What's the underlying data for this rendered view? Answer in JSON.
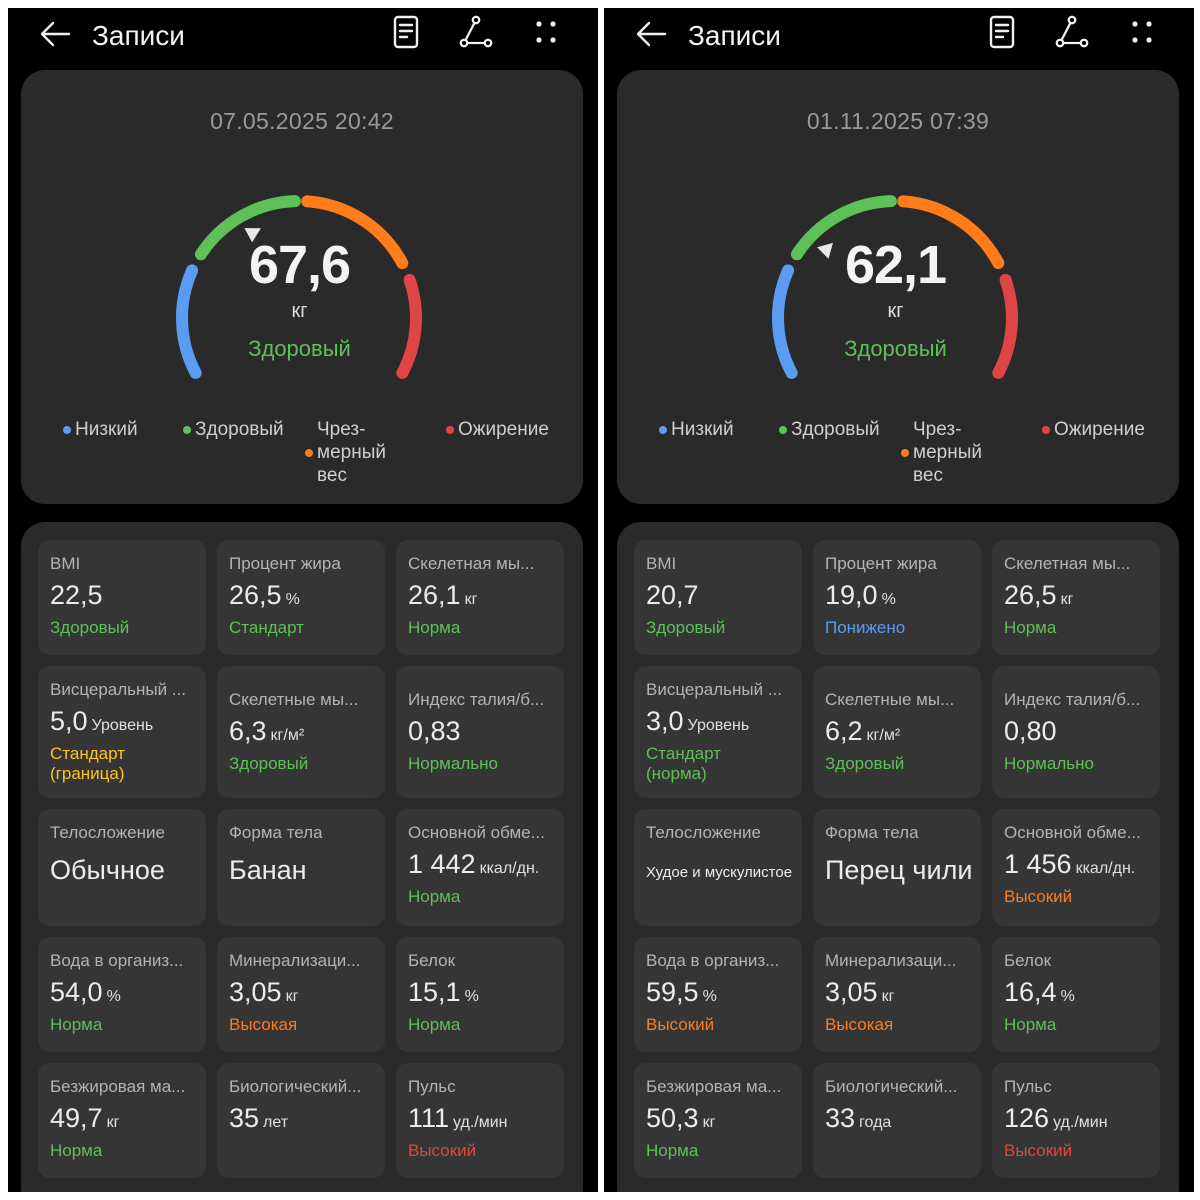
{
  "colors": {
    "low": "#5b9cf3",
    "healthy": "#5dc158",
    "excess": "#ff7c1a",
    "obese": "#e04545",
    "standard_border": "#ffc31f"
  },
  "icons": [
    "arrow-left-icon",
    "document-icon",
    "share-icon",
    "more-dots-icon",
    "pointer-triangle-icon"
  ],
  "screens": [
    {
      "title": "Записи",
      "date": "07.05.2025 20:42",
      "weight": {
        "value": "67,6",
        "unit": "кг",
        "status": "Здоровый",
        "pointer_fraction": 0.38
      },
      "legend": [
        "Низкий",
        "Здоровый",
        "Чрез-\nмерный\nвес",
        "Ожирение"
      ],
      "metrics": [
        {
          "label": "BMI",
          "value": "22,5",
          "unit": "",
          "status": "Здоровый",
          "status_color": "#5dc158"
        },
        {
          "label": "Процент жира",
          "value": "26,5",
          "unit": "%",
          "status": "Стандарт",
          "status_color": "#5dc158"
        },
        {
          "label": "Скелетная мы...",
          "value": "26,1",
          "unit": "кг",
          "status": "Норма",
          "status_color": "#5dc158"
        },
        {
          "label": "Висцеральный ...",
          "value": "5,0",
          "unit": "Уровень",
          "status": "Стандарт\n(граница)",
          "status_color": "#ffc31f"
        },
        {
          "label": "Скелетные мы...",
          "value": "6,3",
          "unit": "кг/м²",
          "status": "Здоровый",
          "status_color": "#5dc158"
        },
        {
          "label": "Индекс талия/б...",
          "value": "0,83",
          "unit": "",
          "status": "Нормально",
          "status_color": "#5dc158"
        },
        {
          "label": "Телосложение",
          "value": "Обычное",
          "unit": "",
          "status": "",
          "status_color": "#5dc158"
        },
        {
          "label": "Форма тела",
          "value": "Банан",
          "unit": "",
          "status": "",
          "status_color": "#5dc158"
        },
        {
          "label": "Основной обме...",
          "value": "1 442",
          "unit": "ккал/дн.",
          "status": "Норма",
          "status_color": "#5dc158"
        },
        {
          "label": "Вода в организ...",
          "value": "54,0",
          "unit": "%",
          "status": "Норма",
          "status_color": "#5dc158"
        },
        {
          "label": "Минерализаци...",
          "value": "3,05",
          "unit": "кг",
          "status": "Высокая",
          "status_color": "#ff7c1a"
        },
        {
          "label": "Белок",
          "value": "15,1",
          "unit": "%",
          "status": "Норма",
          "status_color": "#5dc158"
        },
        {
          "label": "Безжировая ма...",
          "value": "49,7",
          "unit": "кг",
          "status": "Норма",
          "status_color": "#5dc158"
        },
        {
          "label": "Биологический...",
          "value": "35",
          "unit": "лет",
          "status": "",
          "status_color": "#5dc158"
        },
        {
          "label": "Пульс",
          "value": "111",
          "unit": "уд./мин",
          "status": "Высокий",
          "status_color": "#e04545"
        }
      ]
    },
    {
      "title": "Записи",
      "date": "01.11.2025 07:39",
      "weight": {
        "value": "62,1",
        "unit": "кг",
        "status": "Здоровый",
        "pointer_fraction": 0.31
      },
      "legend": [
        "Низкий",
        "Здоровый",
        "Чрез-\nмерный\nвес",
        "Ожирение"
      ],
      "metrics": [
        {
          "label": "BMI",
          "value": "20,7",
          "unit": "",
          "status": "Здоровый",
          "status_color": "#5dc158"
        },
        {
          "label": "Процент жира",
          "value": "19,0",
          "unit": "%",
          "status": "Понижено",
          "status_color": "#5b9cf3"
        },
        {
          "label": "Скелетная мы...",
          "value": "26,5",
          "unit": "кг",
          "status": "Норма",
          "status_color": "#5dc158"
        },
        {
          "label": "Висцеральный ...",
          "value": "3,0",
          "unit": "Уровень",
          "status": "Стандарт\n(норма)",
          "status_color": "#5dc158"
        },
        {
          "label": "Скелетные мы...",
          "value": "6,2",
          "unit": "кг/м²",
          "status": "Здоровый",
          "status_color": "#5dc158"
        },
        {
          "label": "Индекс талия/б...",
          "value": "0,80",
          "unit": "",
          "status": "Нормально",
          "status_color": "#5dc158"
        },
        {
          "label": "Телосложение",
          "value": "Худое и мускулистое",
          "unit": "",
          "status": "",
          "status_color": "#5dc158",
          "small": true
        },
        {
          "label": "Форма тела",
          "value": "Перец чили",
          "unit": "",
          "status": "",
          "status_color": "#5dc158"
        },
        {
          "label": "Основной обме...",
          "value": "1 456",
          "unit": "ккал/дн.",
          "status": "Высокий",
          "status_color": "#ff7c1a"
        },
        {
          "label": "Вода в организ...",
          "value": "59,5",
          "unit": "%",
          "status": "Высокий",
          "status_color": "#ff7c1a"
        },
        {
          "label": "Минерализаци...",
          "value": "3,05",
          "unit": "кг",
          "status": "Высокая",
          "status_color": "#ff7c1a"
        },
        {
          "label": "Белок",
          "value": "16,4",
          "unit": "%",
          "status": "Норма",
          "status_color": "#5dc158"
        },
        {
          "label": "Безжировая ма...",
          "value": "50,3",
          "unit": "кг",
          "status": "Норма",
          "status_color": "#5dc158"
        },
        {
          "label": "Биологический...",
          "value": "33",
          "unit": "года",
          "status": "",
          "status_color": "#5dc158"
        },
        {
          "label": "Пульс",
          "value": "126",
          "unit": "уд./мин",
          "status": "Высокий",
          "status_color": "#e04545"
        }
      ]
    }
  ]
}
